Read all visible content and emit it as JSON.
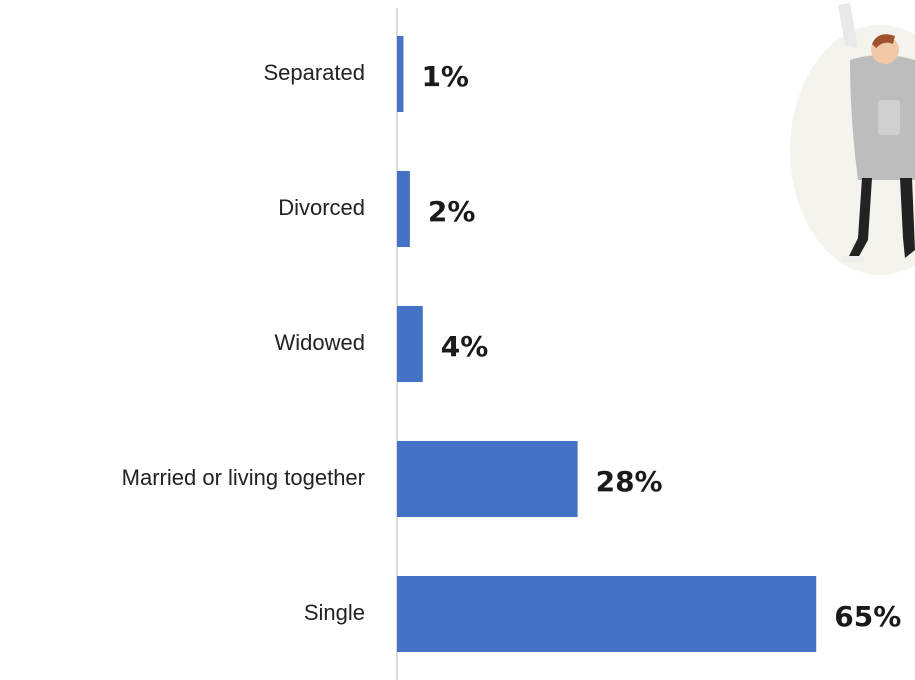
{
  "chart_data": {
    "type": "bar",
    "orientation": "horizontal",
    "categories": [
      "Separated",
      "Divorced",
      "Widowed",
      "Married or living together",
      "Single"
    ],
    "values": [
      1,
      2,
      4,
      28,
      65
    ],
    "value_labels": [
      "1%",
      "2%",
      "4%",
      "28%",
      "65%"
    ],
    "color": "#4472c4"
  }
}
